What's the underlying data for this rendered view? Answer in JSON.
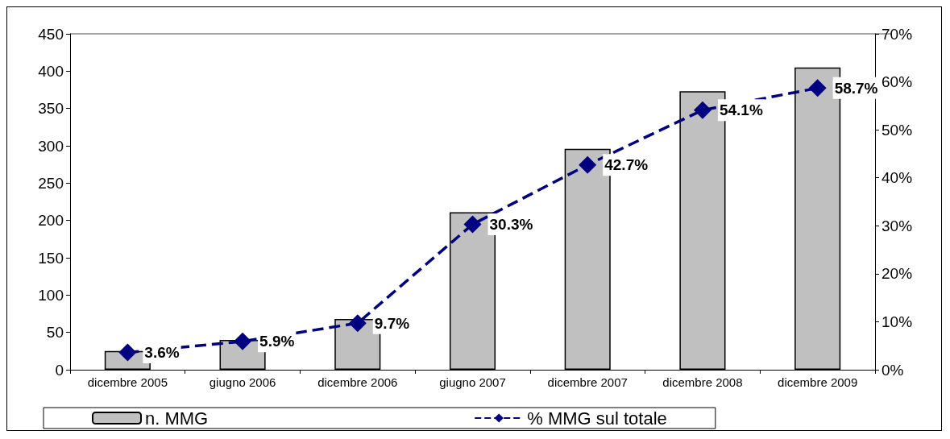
{
  "chart_data": {
    "type": "bar",
    "categories": [
      "dicembre 2005",
      "giugno 2006",
      "dicembre 2006",
      "giugno 2007",
      "dicembre 2007",
      "dicembre 2008",
      "dicembre 2009"
    ],
    "series": [
      {
        "name": "n. MMG",
        "color": "#c0c0c0",
        "values": [
          25,
          40,
          68,
          211,
          296,
          373,
          405
        ]
      },
      {
        "name": "% MMG sul totale",
        "type": "line",
        "axis": "y2",
        "color": "#000080",
        "marker": "diamond",
        "line_style": "dashed",
        "values": [
          3.6,
          5.9,
          9.7,
          30.3,
          42.7,
          54.1,
          58.7
        ],
        "value_labels": [
          "3.6%",
          "5.9%",
          "9.7%",
          "30.3%",
          "42.7%",
          "54.1%",
          "58.7%"
        ]
      }
    ],
    "ylim": [
      0,
      450
    ],
    "yticks": [
      0,
      50,
      100,
      150,
      200,
      250,
      300,
      350,
      400,
      450
    ],
    "y2lim": [
      0,
      70
    ],
    "y2ticks": [
      {
        "value": 0,
        "label": "0%"
      },
      {
        "value": 10,
        "label": "10%"
      },
      {
        "value": 20,
        "label": "20%"
      },
      {
        "value": 30,
        "label": "30%"
      },
      {
        "value": 40,
        "label": "40%"
      },
      {
        "value": 50,
        "label": "50%"
      },
      {
        "value": 60,
        "label": "60%"
      },
      {
        "value": 70,
        "label": "70%"
      }
    ],
    "grid": false,
    "legend": "bottom"
  }
}
